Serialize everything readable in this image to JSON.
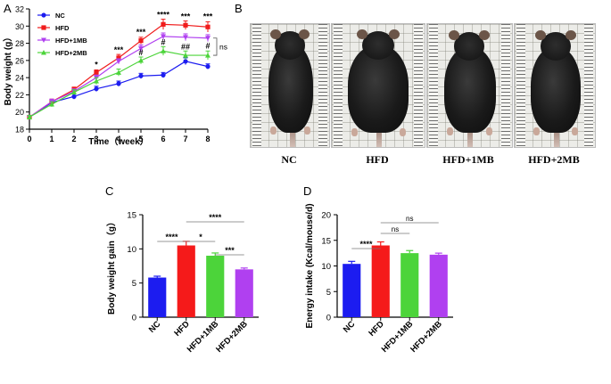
{
  "panels": {
    "a": "A",
    "b": "B",
    "c": "C",
    "d": "D"
  },
  "chart_data": [
    {
      "type": "line",
      "panel": "A",
      "title": "",
      "xlabel": "Time（week）",
      "ylabel": "Body weight (g）",
      "xlim": [
        0,
        8
      ],
      "ylim": [
        18,
        32
      ],
      "xticks": [
        0,
        1,
        2,
        3,
        4,
        5,
        6,
        7,
        8
      ],
      "yticks": [
        18,
        20,
        22,
        24,
        26,
        28,
        30,
        32
      ],
      "x": [
        0,
        1,
        2,
        3,
        4,
        5,
        6,
        7,
        8
      ],
      "series": [
        {
          "name": "NC",
          "color": "#1c1cf0",
          "marker": "circle",
          "values": [
            19.4,
            21.1,
            21.8,
            22.7,
            23.3,
            24.2,
            24.3,
            25.9,
            25.3
          ],
          "errors": [
            0.2,
            0.3,
            0.3,
            0.3,
            0.3,
            0.3,
            0.3,
            0.4,
            0.3
          ]
        },
        {
          "name": "HFD",
          "color": "#f01c1c",
          "marker": "square",
          "values": [
            19.4,
            21.2,
            22.6,
            24.6,
            26.3,
            28.3,
            30.2,
            30.1,
            29.9
          ],
          "errors": [
            0.2,
            0.3,
            0.3,
            0.3,
            0.4,
            0.4,
            0.6,
            0.5,
            0.6
          ]
        },
        {
          "name": "HFD+1MB",
          "color": "#b040f0",
          "marker": "triangle-down",
          "values": [
            19.4,
            21.2,
            22.4,
            24.0,
            25.9,
            27.4,
            28.8,
            28.7,
            28.6
          ],
          "errors": [
            0.2,
            0.3,
            0.3,
            0.3,
            0.3,
            0.4,
            0.4,
            0.4,
            0.4
          ]
        },
        {
          "name": "HFD+2MB",
          "color": "#4cd43a",
          "marker": "triangle-up",
          "values": [
            19.4,
            20.9,
            22.3,
            23.6,
            24.6,
            26.0,
            27.1,
            26.6,
            26.6
          ],
          "errors": [
            0.2,
            0.3,
            0.3,
            0.4,
            0.4,
            0.4,
            0.5,
            0.5,
            0.5
          ]
        }
      ],
      "legend": "top-left",
      "annotations": [
        {
          "x": 3,
          "y": 25.2,
          "text": "*"
        },
        {
          "x": 4,
          "y": 26.9,
          "text": "***"
        },
        {
          "x": 5,
          "y": 29.0,
          "text": "***"
        },
        {
          "x": 6,
          "y": 31.0,
          "text": "****"
        },
        {
          "x": 7,
          "y": 30.8,
          "text": "***"
        },
        {
          "x": 8,
          "y": 30.8,
          "text": "***"
        },
        {
          "x": 5,
          "y": 26.6,
          "text": "#"
        },
        {
          "x": 6,
          "y": 27.8,
          "text": "#"
        },
        {
          "x": 7,
          "y": 27.3,
          "text": "##"
        },
        {
          "x": 8,
          "y": 27.4,
          "text": "#"
        }
      ],
      "bracket_label": "ns"
    },
    {
      "type": "bar",
      "panel": "C",
      "title": "",
      "xlabel": "",
      "ylabel": "Body weight gain（g）",
      "ylim": [
        0,
        15
      ],
      "yticks": [
        0,
        5,
        10,
        15
      ],
      "categories": [
        "NC",
        "HFD",
        "HFD+1MB",
        "HFD+2MB"
      ],
      "values": [
        5.8,
        10.5,
        9.0,
        7.0
      ],
      "errors": [
        0.2,
        0.6,
        0.4,
        0.2
      ],
      "colors": [
        "#1c1cf0",
        "#f51a1a",
        "#4cd43a",
        "#b040f0"
      ],
      "comparisons": [
        {
          "from": 0,
          "to": 1,
          "text": "****"
        },
        {
          "from": 1,
          "to": 2,
          "text": "*"
        },
        {
          "from": 1,
          "to": 3,
          "text": "****"
        },
        {
          "from": 2,
          "to": 3,
          "text": "***"
        }
      ]
    },
    {
      "type": "bar",
      "panel": "D",
      "title": "",
      "xlabel": "",
      "ylabel": "Energy intake (Kcal/mouse/d)",
      "ylim": [
        0,
        20
      ],
      "yticks": [
        0,
        5,
        10,
        15,
        20
      ],
      "categories": [
        "NC",
        "HFD",
        "HFD+1MB",
        "HFD+2MB"
      ],
      "values": [
        10.4,
        14.0,
        12.5,
        12.2
      ],
      "errors": [
        0.5,
        0.7,
        0.5,
        0.3
      ],
      "colors": [
        "#1c1cf0",
        "#f51a1a",
        "#4cd43a",
        "#b040f0"
      ],
      "comparisons": [
        {
          "from": 0,
          "to": 1,
          "text": "****"
        },
        {
          "from": 1,
          "to": 2,
          "text": "ns"
        },
        {
          "from": 1,
          "to": 3,
          "text": "ns"
        }
      ]
    }
  ],
  "photos": {
    "labels": [
      "NC",
      "HFD",
      "HFD+1MB",
      "HFD+2MB"
    ]
  }
}
